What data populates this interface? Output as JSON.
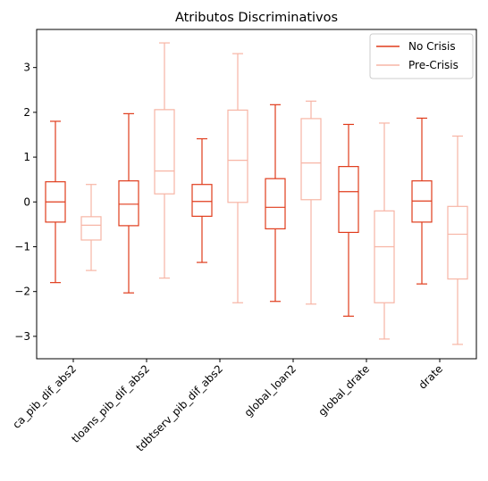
{
  "chart_data": {
    "type": "boxplot",
    "title": "Atributos Discriminativos",
    "xlabel": "",
    "ylabel": "",
    "ylim": [
      -3.5,
      3.85
    ],
    "yticks": [
      -3,
      -2,
      -1,
      0,
      1,
      2,
      3
    ],
    "ytick_labels": [
      "−3",
      "−2",
      "−1",
      "0",
      "1",
      "2",
      "3"
    ],
    "categories": [
      "ca_pib_dif_abs2",
      "tloans_pib_dif_abs2",
      "tdbtserv_pib_dif_abs2",
      "global_loan2",
      "global_drate",
      "drate"
    ],
    "legend_position": "top-right",
    "grid": false,
    "series": [
      {
        "name": "No Crisis",
        "color": "#e03c1c",
        "boxes": [
          {
            "whislo": -1.8,
            "q1": -0.45,
            "med": 0.0,
            "q3": 0.45,
            "whishi": 1.8
          },
          {
            "whislo": -2.03,
            "q1": -0.53,
            "med": -0.05,
            "q3": 0.47,
            "whishi": 1.97
          },
          {
            "whislo": -1.35,
            "q1": -0.32,
            "med": 0.01,
            "q3": 0.39,
            "whishi": 1.41
          },
          {
            "whislo": -2.22,
            "q1": -0.6,
            "med": -0.12,
            "q3": 0.52,
            "whishi": 2.17
          },
          {
            "whislo": -2.55,
            "q1": -0.68,
            "med": 0.23,
            "q3": 0.79,
            "whishi": 1.73
          },
          {
            "whislo": -1.83,
            "q1": -0.45,
            "med": 0.02,
            "q3": 0.47,
            "whishi": 1.87
          }
        ]
      },
      {
        "name": "Pre-Crisis",
        "color": "#f7b5a5",
        "boxes": [
          {
            "whislo": -1.53,
            "q1": -0.85,
            "med": -0.52,
            "q3": -0.33,
            "whishi": 0.39
          },
          {
            "whislo": -1.7,
            "q1": 0.18,
            "med": 0.69,
            "q3": 2.06,
            "whishi": 3.55
          },
          {
            "whislo": -2.25,
            "q1": -0.01,
            "med": 0.93,
            "q3": 2.05,
            "whishi": 3.31
          },
          {
            "whislo": -2.28,
            "q1": 0.05,
            "med": 0.87,
            "q3": 1.86,
            "whishi": 2.25
          },
          {
            "whislo": -3.06,
            "q1": -2.25,
            "med": -1.0,
            "q3": -0.2,
            "whishi": 1.76
          },
          {
            "whislo": -3.18,
            "q1": -1.72,
            "med": -0.72,
            "q3": -0.1,
            "whishi": 1.47
          }
        ]
      }
    ]
  }
}
